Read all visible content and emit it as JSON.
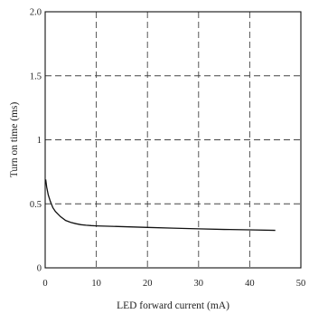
{
  "chart_data": {
    "type": "line",
    "xlabel": "LED forward current (mA)",
    "ylabel": "Turn on time (ms)",
    "xlim": [
      0,
      50
    ],
    "ylim": [
      0,
      2.0
    ],
    "x_ticks": [
      "0",
      "10",
      "20",
      "30",
      "40",
      "50"
    ],
    "y_ticks": [
      "0",
      "0.5",
      "1",
      "1.5",
      "2.0"
    ],
    "grid": true,
    "series": [
      {
        "x": [
          0.1,
          0.3,
          0.6,
          1.0,
          1.5,
          2.0,
          3.0,
          4.0,
          5.0,
          6.0,
          7.0,
          8.0,
          9.0,
          10.0,
          15.0,
          20.0,
          25.0,
          30.0,
          35.0,
          40.0,
          45.0
        ],
        "y": [
          0.69,
          0.63,
          0.57,
          0.52,
          0.47,
          0.44,
          0.4,
          0.37,
          0.355,
          0.345,
          0.337,
          0.333,
          0.33,
          0.328,
          0.322,
          0.316,
          0.31,
          0.305,
          0.3,
          0.297,
          0.293
        ]
      }
    ]
  }
}
